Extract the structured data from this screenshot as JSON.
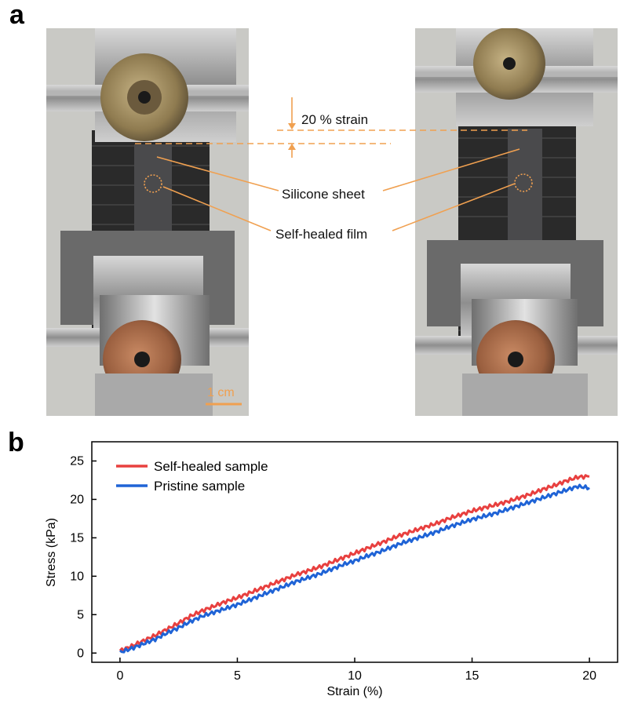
{
  "panels": {
    "a": "a",
    "b": "b"
  },
  "annotations": {
    "strain": "20 % strain",
    "silicone": "Silicone sheet",
    "film": "Self-healed film",
    "scale_bar": "1 cm"
  },
  "colors": {
    "annotation": "#f0a050",
    "healed": "#e8403f",
    "pristine": "#1f63d6"
  },
  "chart_data": {
    "type": "line",
    "xlabel": "Strain (%)",
    "ylabel": "Stress (kPa)",
    "xlim": [
      -1.2,
      21.2
    ],
    "ylim": [
      -1.2,
      27.5
    ],
    "xticks": [
      0,
      5,
      10,
      15,
      20
    ],
    "yticks": [
      0,
      5,
      10,
      15,
      20,
      25
    ],
    "legend_position": "top-left",
    "series": [
      {
        "name": "Self-healed sample",
        "color": "#e8403f",
        "x": [
          0,
          0.5,
          1,
          1.5,
          2,
          2.5,
          3,
          3.5,
          4,
          4.5,
          5,
          5.5,
          6,
          6.5,
          7,
          7.5,
          8,
          8.5,
          9,
          9.5,
          10,
          10.5,
          11,
          11.5,
          12,
          12.5,
          13,
          13.5,
          14,
          14.5,
          15,
          15.5,
          16,
          16.5,
          17,
          17.5,
          18,
          18.5,
          19,
          19.5,
          20
        ],
        "y": [
          0.3,
          0.9,
          1.6,
          2.3,
          3.1,
          3.9,
          4.8,
          5.5,
          6.1,
          6.7,
          7.2,
          7.8,
          8.4,
          9.0,
          9.6,
          10.2,
          10.7,
          11.2,
          11.8,
          12.4,
          13.0,
          13.6,
          14.2,
          14.8,
          15.4,
          15.9,
          16.4,
          16.9,
          17.5,
          18.0,
          18.5,
          18.9,
          19.3,
          19.7,
          20.2,
          20.7,
          21.3,
          21.8,
          22.4,
          22.9,
          23.0
        ]
      },
      {
        "name": "Pristine sample",
        "color": "#1f63d6",
        "x": [
          0,
          0.5,
          1,
          1.5,
          2,
          2.5,
          3,
          3.5,
          4,
          4.5,
          5,
          5.5,
          6,
          6.5,
          7,
          7.5,
          8,
          8.5,
          9,
          9.5,
          10,
          10.5,
          11,
          11.5,
          12,
          12.5,
          13,
          13.5,
          14,
          14.5,
          15,
          15.5,
          16,
          16.5,
          17,
          17.5,
          18,
          18.5,
          19,
          19.5,
          20
        ],
        "y": [
          0.1,
          0.6,
          1.2,
          1.8,
          2.6,
          3.3,
          4.1,
          4.8,
          5.3,
          5.8,
          6.3,
          6.9,
          7.5,
          8.1,
          8.7,
          9.3,
          9.8,
          10.3,
          10.9,
          11.5,
          12.0,
          12.6,
          13.1,
          13.7,
          14.3,
          14.8,
          15.3,
          15.8,
          16.4,
          16.9,
          17.4,
          17.8,
          18.2,
          18.7,
          19.2,
          19.7,
          20.2,
          20.7,
          21.2,
          21.7,
          21.5
        ]
      }
    ]
  }
}
